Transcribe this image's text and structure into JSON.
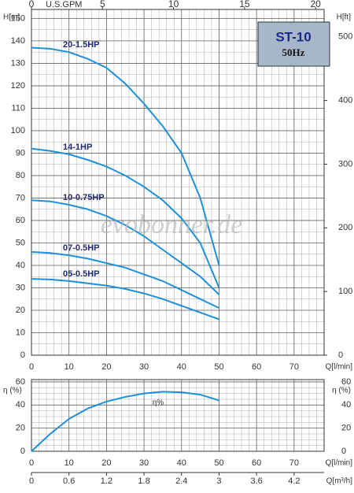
{
  "chart_data": [
    {
      "type": "line",
      "title": "ST-10",
      "subtitle": "50Hz",
      "ylabel": "H[m]",
      "y2label": "H[ft]",
      "xlabel": "Q[l/min]",
      "x2label": "U.S.GPM",
      "watermark": "evobonner.de",
      "xlim": [
        0,
        78
      ],
      "xticks": [
        0,
        10,
        20,
        30,
        40,
        50,
        60,
        70
      ],
      "x2lim": [
        0,
        20.6
      ],
      "x2ticks": [
        0,
        5,
        10,
        15,
        20
      ],
      "ylim": [
        0,
        154
      ],
      "yticks": [
        0,
        10,
        20,
        30,
        40,
        50,
        60,
        70,
        80,
        90,
        100,
        110,
        120,
        130,
        140,
        150
      ],
      "y2lim": [
        0,
        543
      ],
      "y2ticks": [
        0,
        100,
        200,
        300,
        400,
        500
      ],
      "grid": true,
      "x": [
        0,
        5,
        10,
        15,
        20,
        25,
        30,
        35,
        40,
        45,
        50
      ],
      "series": [
        {
          "name": "20-1.5HP",
          "color": "#1e8fd8",
          "values": [
            137,
            136.5,
            135,
            132,
            128,
            121,
            112,
            102,
            90,
            70,
            40
          ]
        },
        {
          "name": "14-1HP",
          "color": "#1e8fd8",
          "values": [
            92,
            91,
            89.5,
            87,
            84,
            80,
            75,
            69,
            61,
            50,
            30
          ]
        },
        {
          "name": "10-0.75HP",
          "color": "#1e8fd8",
          "values": [
            69,
            68.5,
            67,
            65,
            62,
            58,
            53,
            47,
            41,
            35,
            27
          ]
        },
        {
          "name": "07-0.5HP",
          "color": "#1e8fd8",
          "values": [
            46,
            45.5,
            44.5,
            43,
            41,
            39,
            36,
            33,
            29,
            25,
            21
          ]
        },
        {
          "name": "05-0.5HP",
          "color": "#1e8fd8",
          "values": [
            34,
            33.7,
            33,
            32,
            31,
            29.5,
            27.5,
            25,
            22,
            19,
            16
          ]
        }
      ]
    },
    {
      "type": "line",
      "ylabel": "η (%)",
      "y2label": "η (%)",
      "xlabel": "Q[l/min]",
      "x3label": "Q[m³/h]",
      "annotation": "η%",
      "xlim": [
        0,
        78
      ],
      "xticks": [
        0,
        10,
        20,
        30,
        40,
        50,
        60,
        70
      ],
      "x3lim": [
        0,
        4.68
      ],
      "x3ticks": [
        0,
        0.6,
        1.2,
        1.8,
        2.4,
        3,
        3.6,
        4.2
      ],
      "ylim": [
        0,
        62
      ],
      "yticks": [
        0,
        20,
        40,
        60
      ],
      "grid": true,
      "x": [
        0,
        5,
        10,
        15,
        20,
        25,
        30,
        35,
        40,
        45,
        50
      ],
      "series": [
        {
          "name": "η%",
          "color": "#1e8fd8",
          "values": [
            0,
            15,
            28,
            37,
            43,
            47,
            50,
            51.5,
            51,
            49,
            44
          ]
        }
      ]
    }
  ]
}
